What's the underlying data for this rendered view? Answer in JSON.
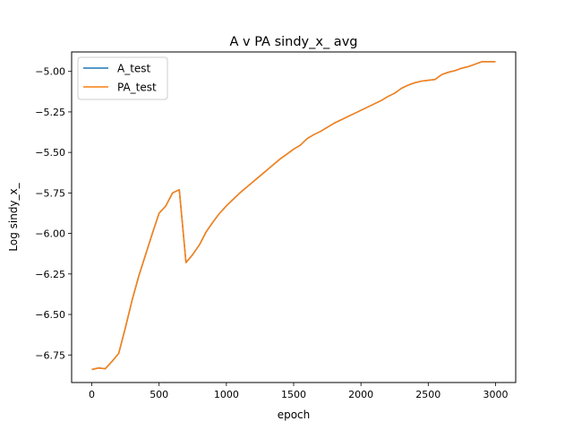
{
  "chart_data": {
    "type": "line",
    "title": "A v PA sindy_x_ avg",
    "xlabel": "epoch",
    "ylabel": "Log sindy_x_",
    "xlim": [
      -150,
      3150
    ],
    "ylim": [
      -6.92,
      -4.88
    ],
    "xticks": [
      0,
      500,
      1000,
      1500,
      2000,
      2500,
      3000
    ],
    "yticks": [
      -6.75,
      -6.5,
      -6.25,
      -6.0,
      -5.75,
      -5.5,
      -5.25,
      -5.0
    ],
    "xtick_labels": [
      "0",
      "500",
      "1000",
      "1500",
      "2000",
      "2500",
      "3000"
    ],
    "ytick_labels": [
      "−6.75",
      "−6.50",
      "−6.25",
      "−6.00",
      "−5.75",
      "−5.50",
      "−5.25",
      "−5.00"
    ],
    "grid": false,
    "legend_position": "upper-left",
    "x": [
      0,
      50,
      100,
      150,
      200,
      250,
      300,
      350,
      400,
      450,
      500,
      550,
      600,
      650,
      700,
      750,
      800,
      850,
      900,
      950,
      1000,
      1050,
      1100,
      1150,
      1200,
      1250,
      1300,
      1350,
      1400,
      1450,
      1500,
      1550,
      1600,
      1650,
      1700,
      1750,
      1800,
      1850,
      1900,
      1950,
      2000,
      2050,
      2100,
      2150,
      2200,
      2250,
      2300,
      2350,
      2400,
      2450,
      2500,
      2550,
      2600,
      2650,
      2700,
      2750,
      2800,
      2850,
      2900,
      2950,
      3000
    ],
    "series": [
      {
        "name": "A_test",
        "color": "#1f77b4",
        "values": [
          -6.84,
          -6.83,
          -6.835,
          -6.79,
          -6.74,
          -6.58,
          -6.41,
          -6.26,
          -6.13,
          -6.0,
          -5.875,
          -5.83,
          -5.75,
          -5.73,
          -6.18,
          -6.13,
          -6.07,
          -5.99,
          -5.93,
          -5.875,
          -5.83,
          -5.79,
          -5.75,
          -5.715,
          -5.68,
          -5.645,
          -5.61,
          -5.575,
          -5.54,
          -5.51,
          -5.48,
          -5.455,
          -5.415,
          -5.39,
          -5.37,
          -5.345,
          -5.32,
          -5.3,
          -5.28,
          -5.26,
          -5.24,
          -5.22,
          -5.2,
          -5.18,
          -5.155,
          -5.135,
          -5.105,
          -5.085,
          -5.07,
          -5.06,
          -5.055,
          -5.05,
          -5.02,
          -5.005,
          -4.995,
          -4.98,
          -4.97,
          -4.955,
          -4.94,
          -4.94,
          -4.94
        ]
      },
      {
        "name": "PA_test",
        "color": "#ff7f0e",
        "values": [
          -6.84,
          -6.83,
          -6.835,
          -6.79,
          -6.74,
          -6.58,
          -6.41,
          -6.26,
          -6.13,
          -6.0,
          -5.875,
          -5.83,
          -5.75,
          -5.73,
          -6.18,
          -6.13,
          -6.07,
          -5.99,
          -5.93,
          -5.875,
          -5.83,
          -5.79,
          -5.75,
          -5.715,
          -5.68,
          -5.645,
          -5.61,
          -5.575,
          -5.54,
          -5.51,
          -5.48,
          -5.455,
          -5.415,
          -5.39,
          -5.37,
          -5.345,
          -5.32,
          -5.3,
          -5.28,
          -5.26,
          -5.24,
          -5.22,
          -5.2,
          -5.18,
          -5.155,
          -5.135,
          -5.105,
          -5.085,
          -5.07,
          -5.06,
          -5.055,
          -5.05,
          -5.02,
          -5.005,
          -4.995,
          -4.98,
          -4.97,
          -4.955,
          -4.94,
          -4.94,
          -4.94
        ]
      }
    ]
  }
}
